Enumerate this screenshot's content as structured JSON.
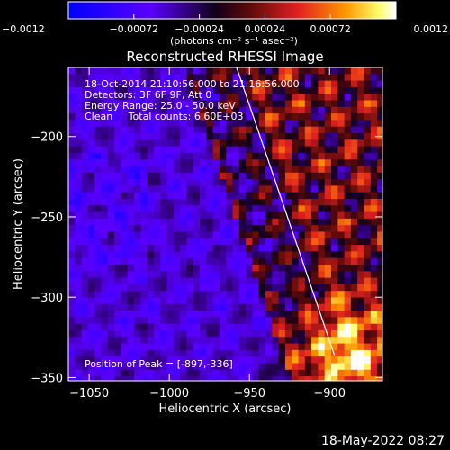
{
  "chart_data": {
    "type": "heatmap",
    "title": "Reconstructed RHESSI Image",
    "xlabel": "Heliocentric X (arcsec)",
    "ylabel": "Heliocentric Y (arcsec)",
    "xlim": [
      -1063,
      -867
    ],
    "ylim": [
      -352,
      -157
    ],
    "x_ticks": [
      -1050,
      -1000,
      -950,
      -900
    ],
    "x_tick_labels": [
      "−1050",
      "−1000",
      "−950",
      "−900"
    ],
    "y_ticks": [
      -350,
      -300,
      -250,
      -200
    ],
    "y_tick_labels": [
      "−350",
      "−300",
      "−250",
      "−200"
    ],
    "grid": false,
    "colorbar": {
      "min": -0.0012,
      "max": 0.0012,
      "ticks": [
        -0.0012,
        -0.00072,
        -0.00024,
        0.00024,
        0.00072,
        0.0012
      ],
      "tick_labels": [
        "−0.0012",
        "−0.00072",
        "−0.00024",
        "0.00024",
        "0.00072",
        "0.0012"
      ],
      "unit_label": "(photons cm⁻² s⁻¹ asec⁻²)",
      "colors": [
        "#0000ff",
        "#5500ff",
        "#000000",
        "#d81f1f",
        "#ff7a00",
        "#ffff80",
        "#ffffff"
      ]
    },
    "annotations": [
      "18-Oct-2014 21:10:56.000 to 21:16:56.000",
      "Detectors: 3F 6F 9F, Att 0",
      "Energy Range: 25.0 - 50.0 keV",
      "Clean     Total counts: 6.60E+03"
    ],
    "peak_label": "Position of Peak = [-897,-336]",
    "peak_x": -897,
    "peak_y": -336,
    "limb_line": [
      [
        -958,
        -157
      ],
      [
        -897,
        -336
      ]
    ]
  },
  "footer_date": "18-May-2022 08:27"
}
